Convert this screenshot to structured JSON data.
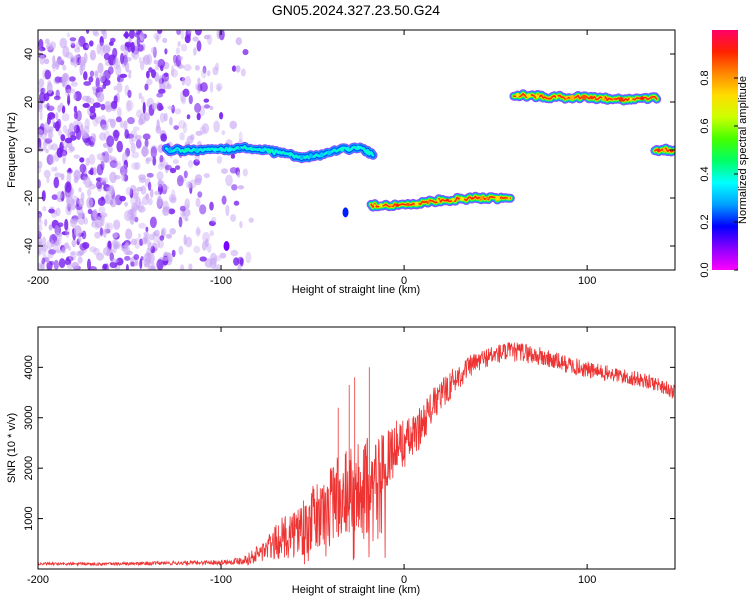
{
  "title": "GN05.2024.327.23.50.G24",
  "chart_data": [
    {
      "type": "heatmap",
      "name": "spectrogram",
      "xlabel": "Height of straight line (km)",
      "ylabel": "Frequency (Hz)",
      "xlim": [
        -200,
        148
      ],
      "ylim": [
        -50,
        50
      ],
      "xticks": [
        -200,
        -100,
        0,
        100
      ],
      "yticks": [
        -40,
        -20,
        0,
        20,
        40
      ],
      "colorbar": {
        "label": "Normalized spectral amplitude",
        "range": [
          0,
          1
        ],
        "ticks": [
          "0.0",
          "0.2",
          "0.4",
          "0.6",
          "0.8"
        ],
        "colors": [
          "#ff00ff",
          "#8800ff",
          "#0000ff",
          "#00a0ff",
          "#00ffff",
          "#00ff66",
          "#44ff00",
          "#ccff00",
          "#ffdd00",
          "#ff8800",
          "#ff2200",
          "#ff0066"
        ]
      },
      "noise_region": {
        "x": [
          -200,
          -90
        ],
        "y": [
          -50,
          50
        ],
        "amplitude": [
          0.05,
          0.2
        ]
      },
      "tracks": [
        {
          "x": [
            -130,
            -100,
            -85,
            -70,
            -55,
            -45,
            -35,
            -25,
            -17
          ],
          "freq": [
            0,
            0,
            1,
            -1,
            -3,
            -2,
            0,
            1,
            -2
          ],
          "amplitude": 0.4
        },
        {
          "x": [
            -18,
            0,
            20,
            40,
            58
          ],
          "freq": [
            -23,
            -23,
            -21,
            -20,
            -20
          ],
          "amplitude": 0.9
        },
        {
          "x": [
            60,
            80,
            100,
            120,
            138
          ],
          "freq": [
            23,
            22,
            22,
            21,
            22
          ],
          "amplitude": 0.9
        },
        {
          "x": [
            137,
            148
          ],
          "freq": [
            0,
            0
          ],
          "amplitude": 0.9
        }
      ],
      "blobs": [
        {
          "x": -32,
          "freq": -26,
          "amplitude": 0.2
        },
        {
          "x": -97,
          "freq": -40,
          "amplitude": 0.1
        }
      ]
    },
    {
      "type": "line",
      "name": "snr",
      "xlabel": "Height of straight line (km)",
      "ylabel": "SNR (10 * v/v)",
      "xlim": [
        -200,
        148
      ],
      "ylim": [
        0,
        4800
      ],
      "xticks": [
        -200,
        -100,
        0,
        100
      ],
      "yticks": [
        1000,
        2000,
        3000,
        4000
      ],
      "color": "#ee3333",
      "x": [
        -200,
        -160,
        -120,
        -95,
        -85,
        -75,
        -65,
        -55,
        -45,
        -35,
        -25,
        -15,
        -5,
        5,
        15,
        25,
        35,
        45,
        55,
        65,
        75,
        85,
        100,
        115,
        130,
        140,
        148
      ],
      "y": [
        100,
        100,
        120,
        140,
        200,
        400,
        650,
        850,
        1100,
        1500,
        1700,
        2000,
        2400,
        2600,
        3200,
        3650,
        4000,
        4200,
        4300,
        4300,
        4200,
        4100,
        3950,
        3850,
        3750,
        3650,
        3500
      ],
      "noise": [
        30,
        30,
        40,
        50,
        120,
        250,
        450,
        600,
        750,
        950,
        900,
        650,
        550,
        450,
        350,
        300,
        220,
        200,
        200,
        200,
        200,
        180,
        170,
        160,
        150,
        150,
        150
      ],
      "spikes": [
        {
          "x": -19,
          "y": 4000
        },
        {
          "x": -27,
          "y": 3800
        },
        {
          "x": -30,
          "y": 3650
        },
        {
          "x": -36,
          "y": 3200
        }
      ]
    }
  ]
}
